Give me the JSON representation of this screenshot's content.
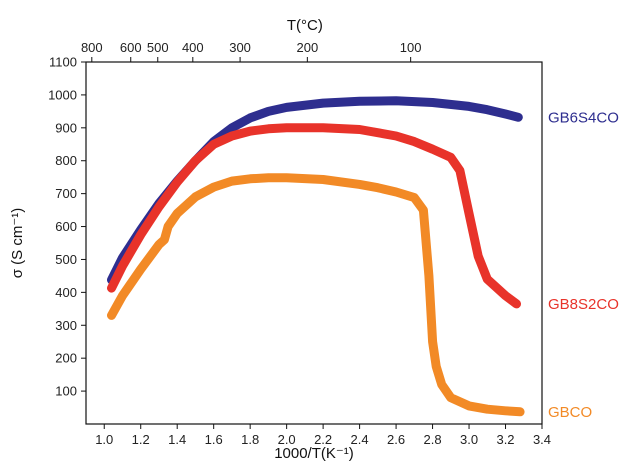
{
  "chart_data": {
    "type": "line",
    "xlabel": "1000/T(K⁻¹)",
    "ylabel": "σ (S cm⁻¹)",
    "top_xlabel": "T(°C)",
    "xlim": [
      0.9,
      3.4
    ],
    "ylim": [
      0,
      1100
    ],
    "x_ticks": [
      1.0,
      1.2,
      1.4,
      1.6,
      1.8,
      2.0,
      2.2,
      2.4,
      2.6,
      2.8,
      3.0,
      3.2,
      3.4
    ],
    "x_tick_labels": [
      "1.0",
      "1.2",
      "1.4",
      "1.6",
      "1.8",
      "2.0",
      "2.2",
      "2.4",
      "2.6",
      "2.8",
      "3.0",
      "3.2",
      "3.4"
    ],
    "y_ticks": [
      100,
      200,
      300,
      400,
      500,
      600,
      700,
      800,
      900,
      1000,
      1100
    ],
    "y_tick_labels": [
      "100",
      "200",
      "300",
      "400",
      "500",
      "600",
      "700",
      "800",
      "900",
      "1000",
      "1100"
    ],
    "top_ticks_celsius": [
      800,
      600,
      500,
      400,
      300,
      200,
      100
    ],
    "top_tick_labels": [
      "800",
      "600",
      "500",
      "400",
      "300",
      "200",
      "100"
    ],
    "grid": false,
    "legend": "direct labels at right end of each curve",
    "series": [
      {
        "name": "GB6S4CO",
        "color": "#2e2e8f",
        "x": [
          1.04,
          1.1,
          1.2,
          1.3,
          1.4,
          1.5,
          1.6,
          1.7,
          1.8,
          1.9,
          2.0,
          2.2,
          2.4,
          2.6,
          2.8,
          3.0,
          3.1,
          3.2,
          3.27
        ],
        "y": [
          438,
          505,
          590,
          670,
          738,
          800,
          858,
          900,
          930,
          950,
          962,
          975,
          981,
          982,
          977,
          965,
          955,
          942,
          932
        ]
      },
      {
        "name": "GB8S2CO",
        "color": "#e8332a",
        "x": [
          1.04,
          1.1,
          1.2,
          1.3,
          1.4,
          1.5,
          1.6,
          1.7,
          1.8,
          1.9,
          2.0,
          2.2,
          2.4,
          2.6,
          2.7,
          2.8,
          2.9,
          2.95,
          3.0,
          3.05,
          3.1,
          3.2,
          3.26
        ],
        "y": [
          413,
          480,
          575,
          660,
          735,
          800,
          850,
          875,
          890,
          897,
          900,
          900,
          895,
          875,
          858,
          835,
          810,
          770,
          640,
          510,
          440,
          390,
          365
        ]
      },
      {
        "name": "GBCO",
        "color": "#f28a26",
        "x": [
          1.04,
          1.1,
          1.2,
          1.3,
          1.33,
          1.35,
          1.4,
          1.5,
          1.6,
          1.7,
          1.8,
          1.9,
          2.0,
          2.2,
          2.4,
          2.5,
          2.6,
          2.7,
          2.75,
          2.78,
          2.8,
          2.82,
          2.85,
          2.9,
          3.0,
          3.1,
          3.2,
          3.28
        ],
        "y": [
          330,
          390,
          470,
          545,
          560,
          600,
          640,
          690,
          720,
          738,
          745,
          748,
          748,
          743,
          728,
          718,
          705,
          688,
          650,
          450,
          250,
          175,
          120,
          80,
          55,
          45,
          40,
          37
        ]
      }
    ]
  }
}
